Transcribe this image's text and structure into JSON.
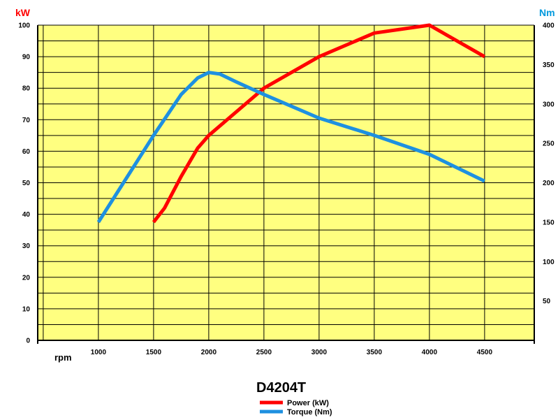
{
  "chart_data": {
    "type": "line",
    "title": "D4204T",
    "xlabel": "rpm",
    "y_left_label": "kW",
    "y_right_label": "Nm",
    "x_ticks": [
      1000,
      1500,
      2000,
      2500,
      3000,
      3500,
      4000,
      4500
    ],
    "y_left_ticks": [
      0,
      10,
      20,
      30,
      40,
      50,
      60,
      70,
      80,
      90,
      100
    ],
    "y_right_ticks": [
      50,
      100,
      150,
      200,
      250,
      300,
      350,
      400
    ],
    "xlim": [
      450,
      4950
    ],
    "y_left_lim": [
      0,
      100
    ],
    "y_right_lim": [
      0,
      400
    ],
    "grid": true,
    "plot_background": "#ffff80",
    "left_axis_color": "#ff0000",
    "right_axis_color": "#0099dd",
    "series": [
      {
        "name": "Power (kW)",
        "axis": "left",
        "color": "#ff0000",
        "x": [
          1500,
          1600,
          1750,
          1900,
          2000,
          2250,
          2500,
          3000,
          3500,
          4000,
          4500
        ],
        "y": [
          37.5,
          42,
          52,
          61,
          65,
          72.5,
          80,
          90,
          97.5,
          100,
          90
        ]
      },
      {
        "name": "Torque (Nm)",
        "axis": "right",
        "color": "#1e90e0",
        "x": [
          1000,
          1250,
          1500,
          1750,
          1900,
          2000,
          2100,
          2250,
          2500,
          3000,
          3500,
          4000,
          4500
        ],
        "y": [
          150,
          205,
          260,
          312,
          333,
          340,
          338,
          328,
          312,
          282,
          260,
          236,
          202
        ]
      }
    ]
  }
}
